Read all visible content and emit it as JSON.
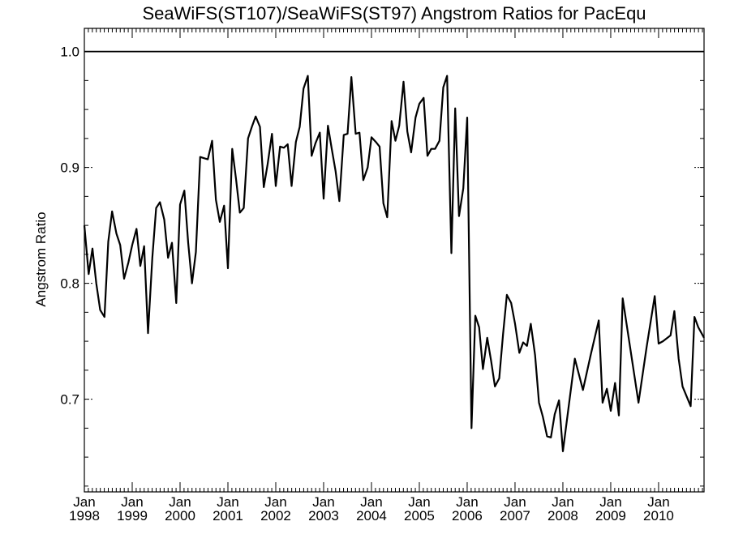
{
  "chart_data": {
    "type": "line",
    "title": "SeaWiFS(ST107)/SeaWiFS(ST97)  Angstrom Ratios for PacEqu",
    "xlabel": "",
    "ylabel": "Angstrom Ratio",
    "xlim": [
      1998.0,
      2010.95
    ],
    "ylim": [
      0.62,
      1.02
    ],
    "yticks": [
      {
        "value": 0.7,
        "label": "0.7"
      },
      {
        "value": 0.8,
        "label": "0.8"
      },
      {
        "value": 0.9,
        "label": "0.9"
      },
      {
        "value": 1.0,
        "label": "1.0"
      }
    ],
    "yminor_step": 0.025,
    "xticks": [
      {
        "value": 1998,
        "label": "1998",
        "month": "Jan"
      },
      {
        "value": 1999,
        "label": "1999",
        "month": "Jan"
      },
      {
        "value": 2000,
        "label": "2000",
        "month": "Jan"
      },
      {
        "value": 2001,
        "label": "2001",
        "month": "Jan"
      },
      {
        "value": 2002,
        "label": "2002",
        "month": "Jan"
      },
      {
        "value": 2003,
        "label": "2003",
        "month": "Jan"
      },
      {
        "value": 2004,
        "label": "2004",
        "month": "Jan"
      },
      {
        "value": 2005,
        "label": "2005",
        "month": "Jan"
      },
      {
        "value": 2006,
        "label": "2006",
        "month": "Jan"
      },
      {
        "value": 2007,
        "label": "2007",
        "month": "Jan"
      },
      {
        "value": 2008,
        "label": "2008",
        "month": "Jan"
      },
      {
        "value": 2009,
        "label": "2009",
        "month": "Jan"
      },
      {
        "value": 2010,
        "label": "2010",
        "month": "Jan"
      }
    ],
    "reference_line": 1.0,
    "grid": false,
    "series": [
      {
        "color": "#000000",
        "x": [
          1998.0,
          1998.09,
          1998.17,
          1998.25,
          1998.33,
          1998.42,
          1998.5,
          1998.58,
          1998.67,
          1998.75,
          1998.83,
          1998.92,
          1999.0,
          1999.09,
          1999.17,
          1999.25,
          1999.33,
          1999.42,
          1999.5,
          1999.58,
          1999.67,
          1999.75,
          1999.83,
          1999.92,
          2000.0,
          2000.09,
          2000.17,
          2000.25,
          2000.33,
          2000.42,
          2000.5,
          2000.58,
          2000.67,
          2000.75,
          2000.83,
          2000.92,
          2001.0,
          2001.09,
          2001.17,
          2001.25,
          2001.33,
          2001.42,
          2001.5,
          2001.58,
          2001.67,
          2001.75,
          2001.83,
          2001.92,
          2002.0,
          2002.09,
          2002.17,
          2002.25,
          2002.33,
          2002.42,
          2002.5,
          2002.58,
          2002.67,
          2002.75,
          2002.83,
          2002.92,
          2003.0,
          2003.09,
          2003.17,
          2003.25,
          2003.33,
          2003.42,
          2003.5,
          2003.58,
          2003.67,
          2003.75,
          2003.83,
          2003.92,
          2004.0,
          2004.09,
          2004.17,
          2004.25,
          2004.33,
          2004.42,
          2004.5,
          2004.58,
          2004.67,
          2004.75,
          2004.83,
          2004.92,
          2005.0,
          2005.09,
          2005.17,
          2005.25,
          2005.33,
          2005.42,
          2005.5,
          2005.58,
          2005.67,
          2005.75,
          2005.83,
          2005.92,
          2006.0,
          2006.09,
          2006.17,
          2006.25,
          2006.33,
          2006.42,
          2006.5,
          2006.58,
          2006.67,
          2006.75,
          2006.83,
          2006.92,
          2007.0,
          2007.09,
          2007.17,
          2007.25,
          2007.33,
          2007.42,
          2007.5,
          2007.58,
          2007.67,
          2007.75,
          2007.83,
          2007.92,
          2008.0,
          2008.25,
          2008.42,
          2008.58,
          2008.75,
          2008.83,
          2008.92,
          2009.0,
          2009.09,
          2009.17,
          2009.25,
          2009.58,
          2009.75,
          2009.92,
          2010.0,
          2010.09,
          2010.25,
          2010.33,
          2010.42,
          2010.5,
          2010.67,
          2010.75,
          2010.83,
          2010.95
        ],
        "y": [
          0.85,
          0.808,
          0.83,
          0.8,
          0.777,
          0.771,
          0.836,
          0.862,
          0.843,
          0.833,
          0.804,
          0.818,
          0.833,
          0.847,
          0.815,
          0.832,
          0.757,
          0.822,
          0.865,
          0.87,
          0.855,
          0.822,
          0.835,
          0.783,
          0.868,
          0.88,
          0.835,
          0.8,
          0.827,
          0.909,
          0.908,
          0.907,
          0.923,
          0.872,
          0.853,
          0.867,
          0.813,
          0.916,
          0.89,
          0.861,
          0.865,
          0.925,
          0.935,
          0.944,
          0.935,
          0.883,
          0.903,
          0.929,
          0.884,
          0.918,
          0.917,
          0.92,
          0.884,
          0.922,
          0.935,
          0.968,
          0.979,
          0.91,
          0.921,
          0.93,
          0.873,
          0.936,
          0.916,
          0.897,
          0.871,
          0.928,
          0.929,
          0.978,
          0.929,
          0.93,
          0.889,
          0.9,
          0.926,
          0.922,
          0.918,
          0.869,
          0.857,
          0.94,
          0.923,
          0.936,
          0.974,
          0.931,
          0.913,
          0.943,
          0.955,
          0.96,
          0.91,
          0.916,
          0.916,
          0.923,
          0.969,
          0.979,
          0.826,
          0.951,
          0.858,
          0.882,
          0.943,
          0.675,
          0.772,
          0.762,
          0.726,
          0.753,
          0.733,
          0.711,
          0.718,
          0.756,
          0.79,
          0.783,
          0.765,
          0.74,
          0.749,
          0.746,
          0.765,
          0.738,
          0.697,
          0.685,
          0.668,
          0.667,
          0.687,
          0.699,
          0.655,
          0.735,
          0.708,
          0.738,
          0.768,
          0.697,
          0.709,
          0.69,
          0.714,
          0.686,
          0.787,
          0.697,
          0.745,
          0.789,
          0.748,
          0.75,
          0.755,
          0.776,
          0.735,
          0.711,
          0.694,
          0.771,
          0.762,
          0.753
        ]
      }
    ]
  }
}
